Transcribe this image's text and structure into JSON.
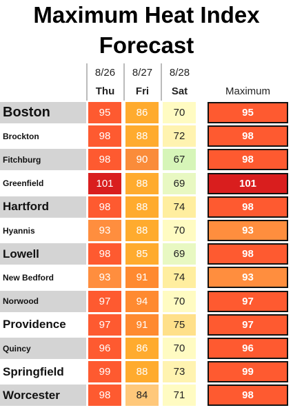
{
  "title": "Maximum Heat Index Forecast",
  "columns": {
    "dates": [
      "8/26",
      "8/27",
      "8/28"
    ],
    "days": [
      "Thu",
      "Fri",
      "Sat"
    ],
    "maximum": "Maximum"
  },
  "rows": [
    {
      "city": "Boston",
      "values": [
        "95",
        "86",
        "70"
      ],
      "colors": [
        "#fe5a30",
        "#ffab2e",
        "#fffbc2"
      ],
      "maximum": "95",
      "maximum_color": "#fe5a30"
    },
    {
      "city": "Brockton",
      "values": [
        "98",
        "88",
        "72"
      ],
      "colors": [
        "#fe5a30",
        "#ffab2e",
        "#fff3b0"
      ],
      "maximum": "98",
      "maximum_color": "#fe5a30"
    },
    {
      "city": "Fitchburg",
      "values": [
        "98",
        "90",
        "67"
      ],
      "colors": [
        "#fe5a30",
        "#fa8c3a",
        "#d6f5b8"
      ],
      "maximum": "98",
      "maximum_color": "#fe5a30"
    },
    {
      "city": "Greenfield",
      "values": [
        "101",
        "88",
        "69"
      ],
      "colors": [
        "#d91e1e",
        "#ffab2e",
        "#e8f8c2"
      ],
      "maximum": "101",
      "maximum_color": "#d91e1e"
    },
    {
      "city": "Hartford",
      "values": [
        "98",
        "88",
        "74"
      ],
      "colors": [
        "#fe5a30",
        "#ffab2e",
        "#ffee9f"
      ],
      "maximum": "98",
      "maximum_color": "#fe5a30"
    },
    {
      "city": "Hyannis",
      "values": [
        "93",
        "88",
        "70"
      ],
      "colors": [
        "#ff8e3e",
        "#ffab2e",
        "#fffbc2"
      ],
      "maximum": "93",
      "maximum_color": "#ff8e3e"
    },
    {
      "city": "Lowell",
      "values": [
        "98",
        "85",
        "69"
      ],
      "colors": [
        "#fe5a30",
        "#ffab2e",
        "#e8f8c2"
      ],
      "maximum": "98",
      "maximum_color": "#fe5a30"
    },
    {
      "city": "New Bedford",
      "values": [
        "93",
        "91",
        "74"
      ],
      "colors": [
        "#ff8e3e",
        "#ff8a30",
        "#ffee9f"
      ],
      "maximum": "93",
      "maximum_color": "#ff8e3e"
    },
    {
      "city": "Norwood",
      "values": [
        "97",
        "94",
        "70"
      ],
      "colors": [
        "#fe5a30",
        "#ff8a30",
        "#fffbc2"
      ],
      "maximum": "97",
      "maximum_color": "#fe5a30"
    },
    {
      "city": "Providence",
      "values": [
        "97",
        "91",
        "75"
      ],
      "colors": [
        "#fe5a30",
        "#ff8a30",
        "#ffe08a"
      ],
      "maximum": "97",
      "maximum_color": "#fe5a30"
    },
    {
      "city": "Quincy",
      "values": [
        "96",
        "86",
        "70"
      ],
      "colors": [
        "#fe5a30",
        "#ffab2e",
        "#fffbc2"
      ],
      "maximum": "96",
      "maximum_color": "#fe5a30"
    },
    {
      "city": "Springfield",
      "values": [
        "99",
        "88",
        "73"
      ],
      "colors": [
        "#fe5a30",
        "#ffab2e",
        "#fff3b0"
      ],
      "maximum": "99",
      "maximum_color": "#fe5a30"
    },
    {
      "city": "Worcester",
      "values": [
        "98",
        "84",
        "71"
      ],
      "colors": [
        "#fe5a30",
        "#ffc87a",
        "#fffbc2"
      ],
      "maximum": "98",
      "maximum_color": "#fe5a30"
    }
  ]
}
